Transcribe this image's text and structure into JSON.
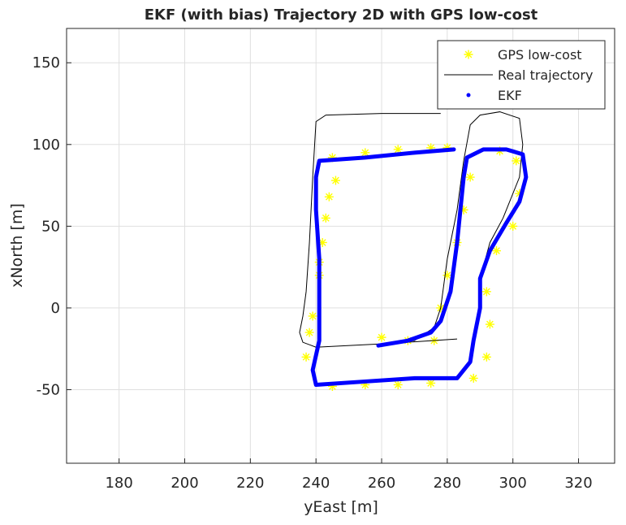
{
  "chart_data": {
    "type": "trajectory",
    "title": "EKF (with bias) Trajectory 2D with GPS low-cost",
    "x_label": "yEast [m]",
    "y_label": "xNorth [m]",
    "xlim": [
      164,
      331
    ],
    "ylim": [
      -95,
      171
    ],
    "xticks": [
      180,
      200,
      220,
      240,
      260,
      280,
      300,
      320
    ],
    "yticks": [
      -50,
      0,
      50,
      100,
      150
    ],
    "grid": true,
    "legend": "northeast",
    "series": [
      {
        "name": "GPS low-cost",
        "color": "#ffff00",
        "style": "asterisk",
        "x": [
          260,
          268,
          276,
          278,
          280,
          283,
          285,
          287,
          245,
          255,
          265,
          275,
          280,
          246,
          244,
          243,
          242,
          241,
          241,
          239,
          238,
          237,
          245,
          255,
          265,
          275,
          288,
          292,
          293,
          292,
          295,
          300,
          302,
          301,
          296
        ],
        "values": [
          -18,
          -20,
          -20,
          0,
          20,
          40,
          60,
          80,
          92,
          95,
          97,
          98,
          98,
          78,
          68,
          55,
          40,
          28,
          20,
          -5,
          -15,
          -30,
          -48,
          -47,
          -47,
          -46,
          -43,
          -30,
          -10,
          10,
          35,
          50,
          70,
          90,
          96
        ]
      },
      {
        "name": "Real trajectory",
        "color": "#000000",
        "style": "line",
        "x": [
          278,
          260,
          243,
          240,
          239,
          238,
          237,
          236,
          235,
          236,
          240,
          260,
          283,
          null,
          260,
          270,
          276,
          278,
          280,
          283,
          285,
          287,
          290,
          296,
          302,
          303,
          302,
          297,
          293,
          290
        ],
        "values": [
          119,
          119,
          118,
          114,
          80,
          40,
          10,
          -5,
          -15,
          -21,
          -24,
          -22,
          -19,
          null,
          -22,
          -20,
          -12,
          0,
          30,
          60,
          90,
          112,
          118,
          120,
          116,
          100,
          80,
          55,
          40,
          18
        ]
      },
      {
        "name": "EKF",
        "color": "#0000ff",
        "style": "dotline",
        "x": [
          259,
          268,
          275,
          278,
          281,
          283,
          284,
          285,
          286,
          291,
          298,
          303,
          304,
          302,
          298,
          293,
          290,
          290,
          288,
          287,
          283,
          270,
          255,
          240,
          239,
          241,
          241,
          241,
          240,
          240,
          241,
          255,
          270,
          282
        ],
        "values": [
          -23,
          -20,
          -15,
          -8,
          10,
          40,
          60,
          80,
          92,
          97,
          97,
          94,
          80,
          65,
          52,
          35,
          18,
          0,
          -20,
          -33,
          -43,
          -43,
          -45,
          -47,
          -38,
          -20,
          0,
          30,
          60,
          80,
          90,
          92,
          95,
          97
        ]
      }
    ]
  }
}
